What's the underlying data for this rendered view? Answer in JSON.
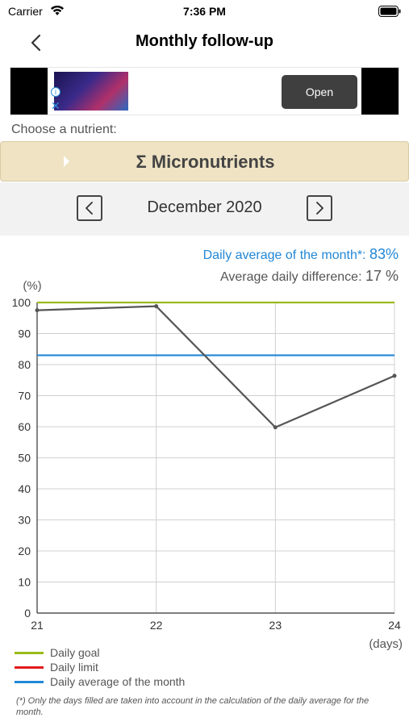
{
  "status_bar": {
    "carrier": "Carrier",
    "time": "7:36 PM",
    "icons": [
      "wifi-icon",
      "battery-icon"
    ]
  },
  "nav": {
    "title": "Monthly follow-up",
    "back_icon": "chevron-left-icon"
  },
  "ad": {
    "open_label": "Open",
    "info_icon": "info-icon",
    "close_icon": "close-icon",
    "info_glyph": "i",
    "close_glyph": "✕"
  },
  "chooser": {
    "label": "Choose a nutrient:",
    "selected": "Σ Micronutrients"
  },
  "month": {
    "label": "December 2020"
  },
  "stats": {
    "average_label": "Daily average of the month*:",
    "average_value": "83%",
    "difference_label": "Average daily difference:",
    "difference_value": "17 %"
  },
  "colors": {
    "goal": "#99bb1a",
    "limit": "#e21a1a",
    "average": "#2287d6",
    "series": "#555555",
    "accent": "#2287d6",
    "selector_bg": "#efe3c4"
  },
  "chart_data": {
    "type": "line",
    "ylabel": "(%)",
    "xlabel": "(days)",
    "x": [
      21,
      22,
      23,
      24
    ],
    "y": [
      97.5,
      98.8,
      59.8,
      76.4
    ],
    "xlim": [
      21,
      24
    ],
    "ylim": [
      0,
      100
    ],
    "yticks": [
      0,
      10,
      20,
      30,
      40,
      50,
      60,
      70,
      80,
      90,
      100
    ],
    "xticks": [
      21,
      22,
      23,
      24
    ],
    "reference_lines": [
      {
        "name": "Daily goal",
        "value": 100
      },
      {
        "name": "Daily average of the month",
        "value": 83
      }
    ],
    "grid": true
  },
  "legend": {
    "items": [
      {
        "label": "Daily goal",
        "color": "#99bb1a"
      },
      {
        "label": "Daily limit",
        "color": "#e21a1a"
      },
      {
        "label": "Daily average of the month",
        "color": "#2287d6"
      }
    ]
  },
  "footnote": "(*) Only the days filled are taken into account in the calculation of the daily average for the month."
}
